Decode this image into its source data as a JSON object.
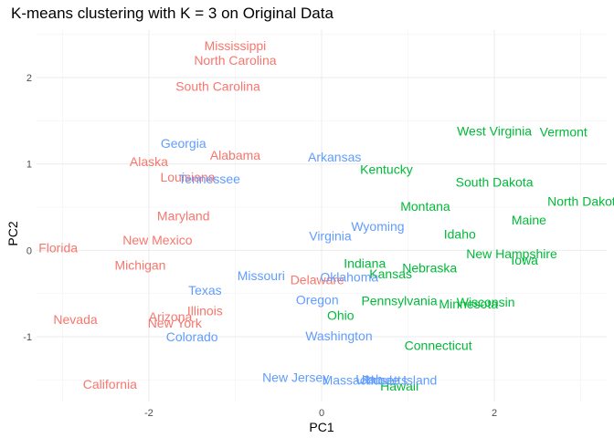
{
  "chart_data": {
    "type": "scatter",
    "title": "K-means clustering with K = 3 on Original Data",
    "xlabel": "PC1",
    "ylabel": "PC2",
    "xlim": [
      -3.3,
      3.3
    ],
    "ylim": [
      -1.75,
      2.55
    ],
    "x_ticks": [
      -2,
      0,
      2
    ],
    "x_tick_labels": [
      "-2",
      "0",
      "2"
    ],
    "y_ticks": [
      -1,
      0,
      1,
      2
    ],
    "y_tick_labels": [
      "-1",
      "0",
      "1",
      "2"
    ],
    "grid": true,
    "legend": "none",
    "cluster_colors": {
      "1": "#F8766D",
      "2": "#00BA38",
      "3": "#619CFF"
    },
    "points": [
      {
        "label": "Mississippi",
        "x": -1.0,
        "y": 2.37,
        "cluster": 1
      },
      {
        "label": "North Carolina",
        "x": -1.0,
        "y": 2.2,
        "cluster": 1
      },
      {
        "label": "South Carolina",
        "x": -1.2,
        "y": 1.9,
        "cluster": 1
      },
      {
        "label": "Alabama",
        "x": -1.0,
        "y": 1.1,
        "cluster": 1
      },
      {
        "label": "Alaska",
        "x": -2.0,
        "y": 1.03,
        "cluster": 1
      },
      {
        "label": "Louisiana",
        "x": -1.55,
        "y": 0.85,
        "cluster": 1
      },
      {
        "label": "Maryland",
        "x": -1.6,
        "y": 0.4,
        "cluster": 1
      },
      {
        "label": "New Mexico",
        "x": -1.9,
        "y": 0.12,
        "cluster": 1
      },
      {
        "label": "Florida",
        "x": -3.05,
        "y": 0.03,
        "cluster": 1
      },
      {
        "label": "Michigan",
        "x": -2.1,
        "y": -0.17,
        "cluster": 1
      },
      {
        "label": "Delaware",
        "x": -0.05,
        "y": -0.34,
        "cluster": 1
      },
      {
        "label": "Illinois",
        "x": -1.35,
        "y": -0.7,
        "cluster": 1
      },
      {
        "label": "Arizona",
        "x": -1.75,
        "y": -0.77,
        "cluster": 1
      },
      {
        "label": "New York",
        "x": -1.7,
        "y": -0.84,
        "cluster": 1
      },
      {
        "label": "Nevada",
        "x": -2.85,
        "y": -0.8,
        "cluster": 1
      },
      {
        "label": "California",
        "x": -2.45,
        "y": -1.55,
        "cluster": 1
      },
      {
        "label": "West Virginia",
        "x": 2.0,
        "y": 1.38,
        "cluster": 2
      },
      {
        "label": "Vermont",
        "x": 2.8,
        "y": 1.37,
        "cluster": 2
      },
      {
        "label": "Kentucky",
        "x": 0.75,
        "y": 0.94,
        "cluster": 2
      },
      {
        "label": "South Dakota",
        "x": 2.0,
        "y": 0.79,
        "cluster": 2
      },
      {
        "label": "North Dakota",
        "x": 3.05,
        "y": 0.57,
        "cluster": 2
      },
      {
        "label": "Montana",
        "x": 1.2,
        "y": 0.51,
        "cluster": 2
      },
      {
        "label": "Maine",
        "x": 2.4,
        "y": 0.35,
        "cluster": 2
      },
      {
        "label": "Idaho",
        "x": 1.6,
        "y": 0.19,
        "cluster": 2
      },
      {
        "label": "New Hampshire",
        "x": 2.2,
        "y": -0.04,
        "cluster": 2
      },
      {
        "label": "Iowa",
        "x": 2.35,
        "y": -0.11,
        "cluster": 2
      },
      {
        "label": "Indiana",
        "x": 0.5,
        "y": -0.15,
        "cluster": 2
      },
      {
        "label": "Nebraska",
        "x": 1.25,
        "y": -0.2,
        "cluster": 2
      },
      {
        "label": "Kansas",
        "x": 0.8,
        "y": -0.27,
        "cluster": 2
      },
      {
        "label": "Pennsylvania",
        "x": 0.9,
        "y": -0.58,
        "cluster": 2
      },
      {
        "label": "Minnesota",
        "x": 1.7,
        "y": -0.62,
        "cluster": 2
      },
      {
        "label": "Wisconsin",
        "x": 1.9,
        "y": -0.6,
        "cluster": 2
      },
      {
        "label": "Ohio",
        "x": 0.22,
        "y": -0.75,
        "cluster": 2
      },
      {
        "label": "Connecticut",
        "x": 1.35,
        "y": -1.1,
        "cluster": 2
      },
      {
        "label": "Hawaii",
        "x": 0.9,
        "y": -1.57,
        "cluster": 2
      },
      {
        "label": "Georgia",
        "x": -1.6,
        "y": 1.24,
        "cluster": 3
      },
      {
        "label": "Arkansas",
        "x": 0.15,
        "y": 1.08,
        "cluster": 3
      },
      {
        "label": "Tennessee",
        "x": -1.3,
        "y": 0.83,
        "cluster": 3
      },
      {
        "label": "Wyoming",
        "x": 0.65,
        "y": 0.28,
        "cluster": 3
      },
      {
        "label": "Virginia",
        "x": 0.1,
        "y": 0.17,
        "cluster": 3
      },
      {
        "label": "Missouri",
        "x": -0.7,
        "y": -0.29,
        "cluster": 3
      },
      {
        "label": "Oklahoma",
        "x": 0.32,
        "y": -0.31,
        "cluster": 3
      },
      {
        "label": "Texas",
        "x": -1.35,
        "y": -0.46,
        "cluster": 3
      },
      {
        "label": "Oregon",
        "x": -0.05,
        "y": -0.57,
        "cluster": 3
      },
      {
        "label": "Colorado",
        "x": -1.5,
        "y": -1.0,
        "cluster": 3
      },
      {
        "label": "Washington",
        "x": 0.2,
        "y": -0.99,
        "cluster": 3
      },
      {
        "label": "New Jersey",
        "x": -0.3,
        "y": -1.47,
        "cluster": 3
      },
      {
        "label": "Massachusetts",
        "x": 0.5,
        "y": -1.5,
        "cluster": 3
      },
      {
        "label": "Utah",
        "x": 0.55,
        "y": -1.49,
        "cluster": 3
      },
      {
        "label": "Rhode Island",
        "x": 0.9,
        "y": -1.5,
        "cluster": 3
      }
    ]
  }
}
